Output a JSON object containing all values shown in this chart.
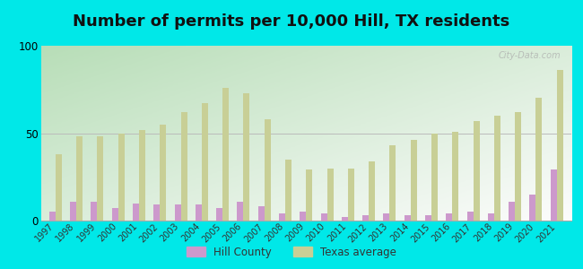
{
  "title": "Number of permits per 10,000 Hill, TX residents",
  "years": [
    1997,
    1998,
    1999,
    2000,
    2001,
    2002,
    2003,
    2004,
    2005,
    2006,
    2007,
    2008,
    2009,
    2010,
    2011,
    2012,
    2013,
    2014,
    2015,
    2016,
    2017,
    2018,
    2019,
    2020,
    2021
  ],
  "hill_county": [
    5,
    11,
    11,
    7,
    10,
    9,
    9,
    9,
    7,
    11,
    8,
    4,
    5,
    4,
    2,
    3,
    4,
    3,
    3,
    4,
    5,
    4,
    11,
    15,
    29
  ],
  "texas_avg": [
    38,
    48,
    48,
    50,
    52,
    55,
    62,
    67,
    76,
    73,
    58,
    35,
    29,
    30,
    30,
    34,
    43,
    46,
    50,
    51,
    57,
    60,
    62,
    70,
    86
  ],
  "bar_color_hill": "#cc99cc",
  "bar_color_texas": "#c8cf96",
  "background_top_left": "#b8ddb8",
  "background_bottom_right": "#f0f8f0",
  "outer_background": "#00e8e8",
  "ylim": [
    0,
    100
  ],
  "yticks": [
    0,
    50,
    100
  ],
  "title_fontsize": 13,
  "legend_hill": "Hill County",
  "legend_texas": "Texas average",
  "bar_width": 0.3,
  "watermark": "City-Data.com"
}
